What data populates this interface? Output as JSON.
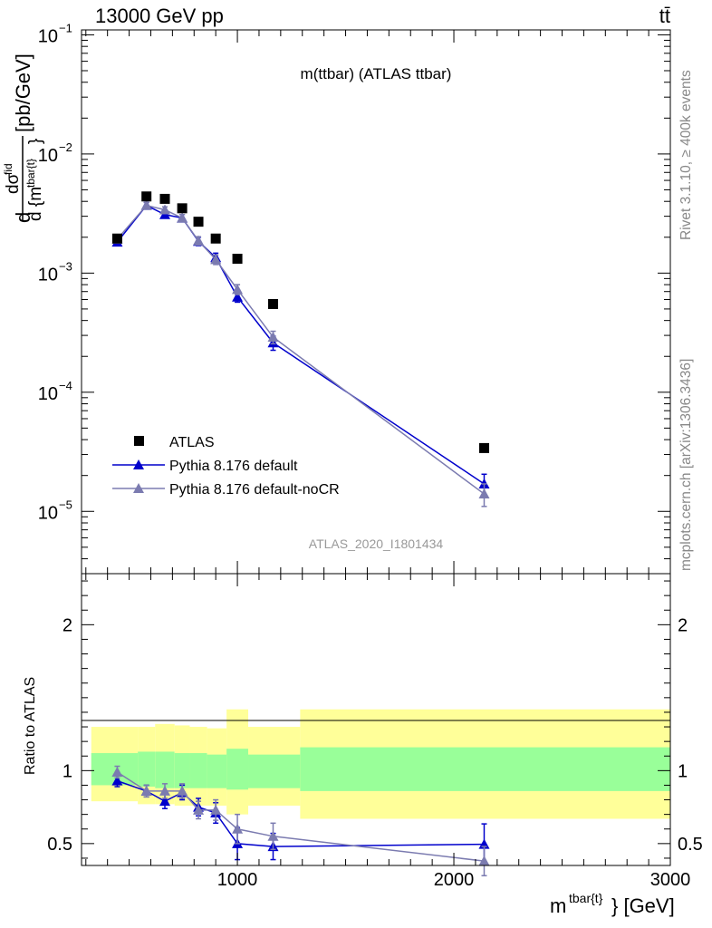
{
  "header": {
    "energy_label": "13000 GeV pp",
    "process_label": "tt̄"
  },
  "side_labels": {
    "rivet": "Rivet 3.1.10, ≥ 400k events",
    "mcplots": "mcplots.cern.ch [arXiv:1306.3436]"
  },
  "chart_data": [
    {
      "type": "scatter",
      "panel": "main",
      "title": "m(ttbar) (ATLAS ttbar)",
      "watermark": "ATLAS_2020_I1801434",
      "ylabel_numerator": "dσ",
      "ylabel_numerator_sup": "fid",
      "ylabel_denominator": "d {m",
      "ylabel_denominator_sup": "tbar{t}",
      "ylabel_denominator_end": "}",
      "ylabel_prefix": "d",
      "ylabel_units": "[pb/GeV]",
      "yscale": "log",
      "xlim": [
        280,
        3000
      ],
      "ylim": [
        3e-06,
        0.11
      ],
      "y_ticks": [
        {
          "value": 1e-05,
          "mant": "10",
          "exp": "−5"
        },
        {
          "value": 0.0001,
          "mant": "10",
          "exp": "−4"
        },
        {
          "value": 0.001,
          "mant": "10",
          "exp": "−3"
        },
        {
          "value": 0.01,
          "mant": "10",
          "exp": "−2"
        },
        {
          "value": 0.1,
          "mant": "10",
          "exp": "−1"
        }
      ],
      "legend_position": "bottom-left",
      "series": [
        {
          "name": "ATLAS",
          "color": "#000000",
          "marker": "square",
          "x": [
            445,
            580,
            665,
            745,
            820,
            900,
            1000,
            1165,
            2140
          ],
          "y": [
            0.00195,
            0.0044,
            0.0042,
            0.0035,
            0.0027,
            0.00195,
            0.00132,
            0.00055,
            3.4e-05
          ]
        },
        {
          "name": "Pythia 8.176 default",
          "color": "#0000cc",
          "marker": "triangle",
          "x": [
            445,
            580,
            665,
            745,
            820,
            900,
            1000,
            1165,
            2140
          ],
          "y": [
            0.00182,
            0.0037,
            0.0031,
            0.0029,
            0.00185,
            0.00135,
            0.00063,
            0.00026,
            1.7e-05
          ],
          "yerr": [
            0.00012,
            0.00022,
            0.0002,
            0.0002,
            0.00015,
            0.00012,
            6e-05,
            3.5e-05,
            3.5e-06
          ]
        },
        {
          "name": "Pythia 8.176 default-noCR",
          "color": "#7b7bb0",
          "marker": "triangle",
          "x": [
            445,
            580,
            665,
            745,
            820,
            900,
            1000,
            1165,
            2140
          ],
          "y": [
            0.00193,
            0.0037,
            0.0034,
            0.0029,
            0.00187,
            0.0013,
            0.00073,
            0.00029,
            1.4e-05
          ],
          "yerr": [
            0.00012,
            0.00022,
            0.0002,
            0.0002,
            0.00015,
            0.00012,
            7e-05,
            3.5e-05,
            3e-06
          ]
        }
      ]
    },
    {
      "type": "scatter",
      "panel": "ratio",
      "ylabel": "Ratio to ATLAS",
      "xlabel_base": "m",
      "xlabel_sup": "tbar{t}",
      "xlabel_end": "} [GeV]",
      "xlim": [
        280,
        3000
      ],
      "ylim": [
        0.35,
        2.35
      ],
      "x_ticks": [
        1000,
        2000,
        3000
      ],
      "y_ticks": [
        {
          "value": 0.5,
          "label": "0.5"
        },
        {
          "value": 1,
          "label": "1"
        },
        {
          "value": 2,
          "label": "2"
        }
      ],
      "bands": [
        {
          "x0": 325,
          "x1": 540,
          "inner": [
            0.9,
            1.12
          ],
          "outer": [
            0.79,
            1.3
          ]
        },
        {
          "x0": 540,
          "x1": 620,
          "inner": [
            0.89,
            1.13
          ],
          "outer": [
            0.77,
            1.3
          ]
        },
        {
          "x0": 620,
          "x1": 710,
          "inner": [
            0.88,
            1.13
          ],
          "outer": [
            0.77,
            1.32
          ]
        },
        {
          "x0": 710,
          "x1": 780,
          "inner": [
            0.88,
            1.12
          ],
          "outer": [
            0.76,
            1.31
          ]
        },
        {
          "x0": 780,
          "x1": 860,
          "inner": [
            0.88,
            1.12
          ],
          "outer": [
            0.76,
            1.3
          ]
        },
        {
          "x0": 860,
          "x1": 950,
          "inner": [
            0.88,
            1.11
          ],
          "outer": [
            0.76,
            1.29
          ]
        },
        {
          "x0": 950,
          "x1": 1050,
          "inner": [
            0.87,
            1.15
          ],
          "outer": [
            0.7,
            1.42
          ]
        },
        {
          "x0": 1050,
          "x1": 1290,
          "inner": [
            0.88,
            1.11
          ],
          "outer": [
            0.76,
            1.3
          ]
        },
        {
          "x0": 1290,
          "x1": 3000,
          "inner": [
            0.86,
            1.16
          ],
          "outer": [
            0.67,
            1.42
          ]
        }
      ],
      "series": [
        {
          "name": "Pythia 8.176 default",
          "color": "#0000cc",
          "x": [
            445,
            580,
            665,
            745,
            820,
            900,
            1000,
            1165,
            2140
          ],
          "y": [
            0.93,
            0.86,
            0.79,
            0.85,
            0.75,
            0.71,
            0.5,
            0.48,
            0.495
          ],
          "yerr": [
            0.04,
            0.04,
            0.05,
            0.05,
            0.06,
            0.07,
            0.11,
            0.09,
            0.14
          ]
        },
        {
          "name": "Pythia 8.176 default-noCR",
          "color": "#7b7bb0",
          "x": [
            445,
            580,
            665,
            745,
            820,
            900,
            1000,
            1165,
            2140
          ],
          "y": [
            0.99,
            0.86,
            0.86,
            0.86,
            0.73,
            0.73,
            0.6,
            0.55,
            0.38
          ],
          "yerr": [
            0.04,
            0.04,
            0.05,
            0.05,
            0.06,
            0.07,
            0.1,
            0.09,
            0.1
          ]
        }
      ]
    }
  ]
}
